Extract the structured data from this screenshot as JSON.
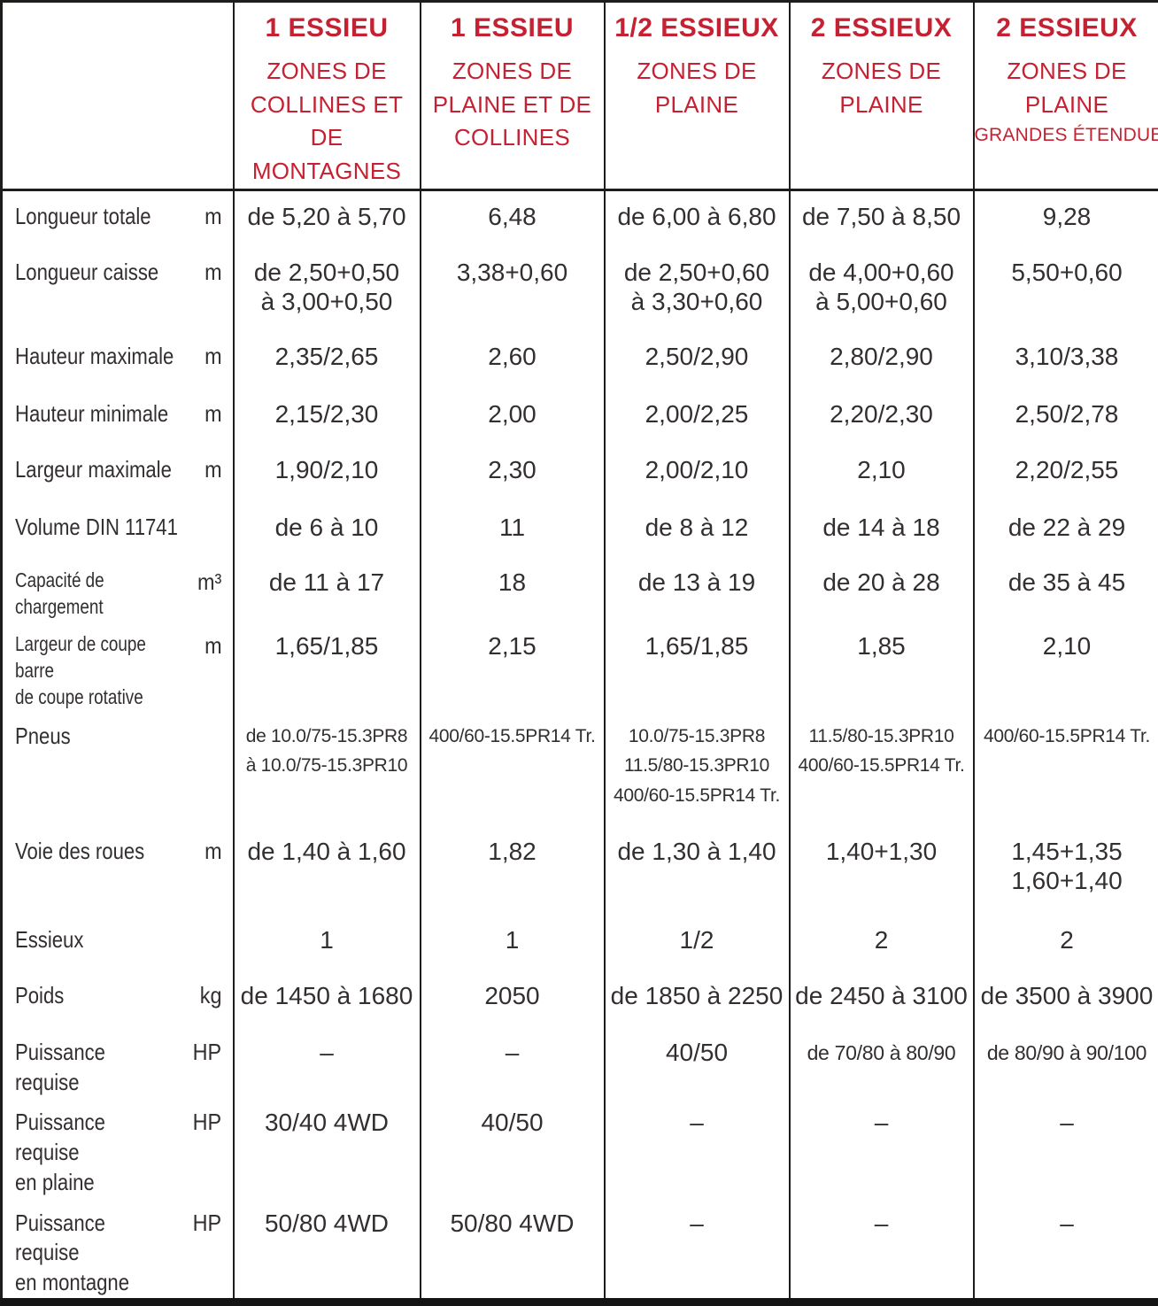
{
  "accent_color": "#c62132",
  "text_color": "#332f30",
  "table": {
    "columns": [
      {
        "title": "1 ESSIEU",
        "subtitle": "ZONES DE\nCOLLINES ET DE\nMONTAGNES"
      },
      {
        "title": "1 ESSIEU",
        "subtitle": "ZONES DE\nPLAINE ET DE\nCOLLINES"
      },
      {
        "title": "1/2 ESSIEUX",
        "subtitle": "ZONES DE\nPLAINE"
      },
      {
        "title": "2 ESSIEUX",
        "subtitle": "ZONES DE\nPLAINE"
      },
      {
        "title": "2 ESSIEUX",
        "subtitle": "ZONES DE\nPLAINE",
        "note": "GRANDES ÉTENDUES"
      }
    ],
    "rows": [
      {
        "label": "Longueur totale",
        "unit": "m",
        "values": [
          "de 5,20 à 5,70",
          "6,48",
          "de 6,00 à 6,80",
          "de 7,50 à 8,50",
          "9,28"
        ]
      },
      {
        "label": "Longueur caisse",
        "unit": "m",
        "values": [
          "de 2,50+0,50\nà 3,00+0,50",
          "3,38+0,60",
          "de 2,50+0,60\nà 3,30+0,60",
          "de 4,00+0,60\nà 5,00+0,60",
          "5,50+0,60"
        ]
      },
      {
        "label": "Hauteur maximale",
        "unit": "m",
        "values": [
          "2,35/2,65",
          "2,60",
          "2,50/2,90",
          "2,80/2,90",
          "3,10/3,38"
        ]
      },
      {
        "label": "Hauteur minimale",
        "unit": "m",
        "values": [
          "2,15/2,30",
          "2,00",
          "2,00/2,25",
          "2,20/2,30",
          "2,50/2,78"
        ]
      },
      {
        "label": "Largeur maximale",
        "unit": "m",
        "values": [
          "1,90/2,10",
          "2,30",
          "2,00/2,10",
          "2,10",
          "2,20/2,55"
        ]
      },
      {
        "label": "Volume DIN 11741",
        "unit": "",
        "values": [
          "de 6 à 10",
          "11",
          "de 8 à 12",
          "de 14 à 18",
          "de 22 à 29"
        ]
      },
      {
        "label": "Capacité de chargement",
        "unit": "m³",
        "values": [
          "de 11 à 17",
          "18",
          "de 13 à 19",
          "de 20 à 28",
          "de 35 à 45"
        ]
      },
      {
        "label": "Largeur de coupe barre\nde coupe rotative",
        "unit": "m",
        "values": [
          "1,65/1,85",
          "2,15",
          "1,65/1,85",
          "1,85",
          "2,10"
        ]
      },
      {
        "label": "Pneus",
        "unit": "",
        "values": [
          "de 10.0/75-15.3PR8\nà 10.0/75-15.3PR10",
          "400/60-15.5PR14 Tr.",
          "10.0/75-15.3PR8\n11.5/80-15.3PR10\n400/60-15.5PR14 Tr.",
          "11.5/80-15.3PR10\n400/60-15.5PR14 Tr.",
          "400/60-15.5PR14 Tr."
        ]
      },
      {
        "label": "Voie des roues",
        "unit": "m",
        "values": [
          "de 1,40 à 1,60",
          "1,82",
          "de 1,30 à 1,40",
          "1,40+1,30",
          "1,45+1,35\n1,60+1,40"
        ]
      },
      {
        "label": "Essieux",
        "unit": "",
        "values": [
          "1",
          "1",
          "1/2",
          "2",
          "2"
        ]
      },
      {
        "label": "Poids",
        "unit": "kg",
        "values": [
          "de 1450 à 1680",
          "2050",
          "de 1850 à 2250",
          "de 2450 à 3100",
          "de 3500 à 3900"
        ]
      },
      {
        "label": "Puissance requise",
        "unit": "HP",
        "values": [
          "–",
          "–",
          "40/50",
          "de 70/80 à 80/90",
          "de 80/90 à 90/100"
        ]
      },
      {
        "label": "Puissance requise\nen plaine",
        "unit": "HP",
        "values": [
          "30/40 4WD",
          "40/50",
          "–",
          "–",
          "–"
        ]
      },
      {
        "label": "Puissance requise\nen montagne",
        "unit": "HP",
        "values": [
          "50/80 4WD",
          "50/80 4WD",
          "–",
          "–",
          "–"
        ]
      }
    ]
  }
}
